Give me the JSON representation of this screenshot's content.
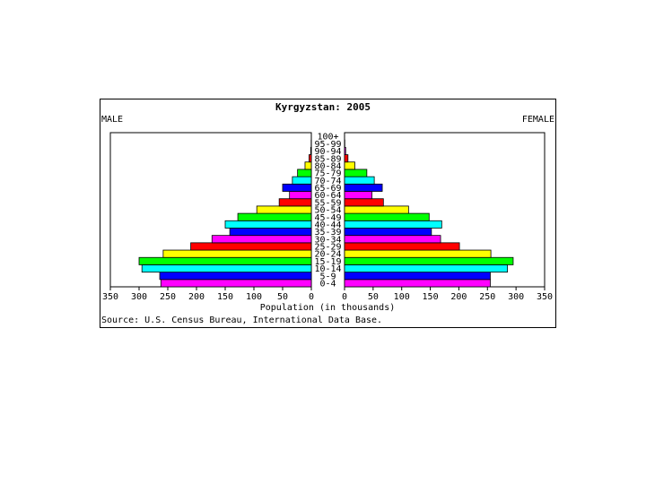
{
  "chart_data": {
    "type": "bar",
    "title": "Kyrgyzstan: 2005",
    "left_label": "MALE",
    "right_label": "FEMALE",
    "xlabel": "Population (in thousands)",
    "source": "Source: U.S. Census Bureau, International Data Base.",
    "xlim": [
      0,
      350
    ],
    "x_ticks": [
      350,
      300,
      250,
      200,
      150,
      100,
      50,
      0
    ],
    "categories": [
      "0-4",
      "5-9",
      "10-14",
      "15-19",
      "20-24",
      "25-29",
      "30-34",
      "35-39",
      "40-44",
      "45-49",
      "50-54",
      "55-59",
      "60-64",
      "65-69",
      "70-74",
      "75-79",
      "80-84",
      "85-89",
      "90-94",
      "95-99",
      "100+"
    ],
    "series": [
      {
        "name": "MALE",
        "values": [
          262,
          264,
          295,
          300,
          258,
          210,
          173,
          142,
          150,
          128,
          95,
          56,
          38,
          50,
          33,
          24,
          11,
          4,
          1,
          0.3,
          0.1
        ]
      },
      {
        "name": "FEMALE",
        "values": [
          255,
          255,
          285,
          295,
          256,
          201,
          168,
          152,
          170,
          148,
          112,
          68,
          48,
          66,
          52,
          39,
          18,
          6,
          2,
          0.5,
          0.1
        ]
      }
    ],
    "bar_colors": [
      "#ff00ff",
      "#0000ff",
      "#00ffff",
      "#00ff00",
      "#ffff00",
      "#ff0000",
      "#ff00ff",
      "#0000ff",
      "#00ffff",
      "#00ff00",
      "#ffff00",
      "#ff0000",
      "#ff00ff",
      "#0000ff",
      "#00ffff",
      "#00ff00",
      "#ffff00",
      "#ff0000",
      "#ff00ff",
      "#0000ff",
      "#00ffff"
    ]
  }
}
